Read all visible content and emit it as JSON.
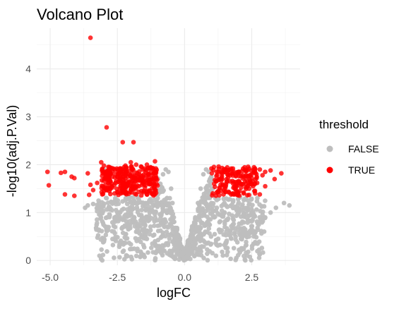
{
  "chart_data": {
    "type": "scatter",
    "title": "Volcano Plot",
    "xlabel": "logFC",
    "ylabel": "-log10(adj.P.Val)",
    "xlim": [
      -5.5,
      4.3
    ],
    "ylim": [
      -0.1,
      4.85
    ],
    "x_ticks": [
      -5.0,
      -2.5,
      0.0,
      2.5
    ],
    "x_tick_labels": [
      "-5.0",
      "-2.5",
      "0.0",
      "2.5"
    ],
    "y_ticks": [
      0,
      1,
      2,
      3,
      4
    ],
    "y_tick_labels": [
      "0",
      "1",
      "2",
      "3",
      "4"
    ],
    "grid": true,
    "legend": {
      "title": "threshold",
      "position": "right",
      "entries": [
        "FALSE",
        "TRUE"
      ]
    },
    "colors": {
      "FALSE": "#bebebe",
      "TRUE": "#ff0000"
    },
    "series": [
      {
        "name": "FALSE",
        "color": "#bebebe",
        "points": [
          [
            -3.0,
            1.9
          ],
          [
            -3.2,
            1.25
          ],
          [
            -2.9,
            1.3
          ],
          [
            -3.4,
            1.18
          ],
          [
            -3.6,
            1.15
          ],
          [
            -3.7,
            1.1
          ],
          [
            -2.7,
            1.05
          ],
          [
            -2.5,
            1.0
          ],
          [
            -2.2,
            0.95
          ],
          [
            -2.0,
            1.0
          ],
          [
            -1.9,
            0.8
          ],
          [
            -1.7,
            0.7
          ],
          [
            -1.5,
            0.6
          ],
          [
            -1.3,
            0.55
          ],
          [
            -1.1,
            0.4
          ],
          [
            -0.95,
            0.3
          ],
          [
            -0.8,
            0.2
          ],
          [
            -0.65,
            0.15
          ],
          [
            -0.5,
            0.1
          ],
          [
            -0.35,
            0.05
          ],
          [
            -0.2,
            0.02
          ],
          [
            -1.2,
            1.2
          ],
          [
            -1.0,
            1.3
          ],
          [
            -0.9,
            1.6
          ],
          [
            -0.8,
            1.8
          ],
          [
            -0.7,
            1.9
          ],
          [
            -0.6,
            1.85
          ],
          [
            -0.5,
            1.5
          ],
          [
            -0.45,
            1.2
          ],
          [
            -0.4,
            0.9
          ],
          [
            -0.3,
            0.6
          ],
          [
            -0.25,
            0.4
          ],
          [
            -0.15,
            0.3
          ],
          [
            -0.1,
            0.15
          ],
          [
            0.0,
            0.05
          ],
          [
            0.1,
            0.1
          ],
          [
            0.2,
            0.25
          ],
          [
            0.3,
            0.5
          ],
          [
            0.4,
            0.9
          ],
          [
            0.5,
            1.2
          ],
          [
            0.6,
            1.5
          ],
          [
            0.7,
            1.8
          ],
          [
            0.8,
            1.9
          ],
          [
            0.9,
            1.85
          ],
          [
            1.0,
            1.2
          ],
          [
            1.2,
            1.1
          ],
          [
            1.4,
            0.95
          ],
          [
            1.6,
            0.85
          ],
          [
            1.8,
            0.75
          ],
          [
            2.0,
            0.7
          ],
          [
            2.2,
            0.6
          ],
          [
            2.4,
            0.5
          ],
          [
            2.6,
            0.55
          ],
          [
            2.5,
            0.65
          ],
          [
            2.8,
            0.8
          ],
          [
            3.0,
            0.9
          ],
          [
            3.2,
            1.0
          ],
          [
            3.4,
            1.1
          ],
          [
            3.7,
            1.2
          ],
          [
            3.9,
            1.15
          ],
          [
            -2.3,
            0.85
          ],
          [
            -2.1,
            0.75
          ],
          [
            -1.8,
            0.6
          ],
          [
            -1.6,
            0.5
          ],
          [
            -1.4,
            0.45
          ],
          [
            -1.2,
            0.35
          ],
          [
            -1.0,
            0.25
          ],
          [
            -0.85,
            0.5
          ],
          [
            -0.75,
            0.7
          ],
          [
            -0.65,
            1.0
          ],
          [
            -0.55,
            1.3
          ],
          [
            0.55,
            0.7
          ],
          [
            0.65,
            1.0
          ],
          [
            0.75,
            1.3
          ],
          [
            0.85,
            1.55
          ],
          [
            1.1,
            0.9
          ],
          [
            1.3,
            0.8
          ],
          [
            1.5,
            0.7
          ],
          [
            1.7,
            0.6
          ],
          [
            1.9,
            0.5
          ],
          [
            2.1,
            0.45
          ],
          [
            -2.6,
            0.9
          ],
          [
            -2.8,
            1.1
          ],
          [
            -3.1,
            1.05
          ],
          [
            -1.05,
            1.7
          ],
          [
            -0.95,
            1.45
          ],
          [
            -1.15,
            1.5
          ],
          [
            1.05,
            1.5
          ],
          [
            1.15,
            1.3
          ],
          [
            0.95,
            1.7
          ]
        ]
      },
      {
        "name": "TRUE",
        "color": "#ff0000",
        "points": [
          [
            -3.5,
            4.65
          ],
          [
            -2.9,
            2.78
          ],
          [
            -2.3,
            2.47
          ],
          [
            -1.9,
            2.47
          ],
          [
            -3.1,
            2.05
          ],
          [
            -5.1,
            1.85
          ],
          [
            -5.05,
            1.57
          ],
          [
            -4.6,
            1.83
          ],
          [
            -4.45,
            1.85
          ],
          [
            -4.2,
            1.75
          ],
          [
            -4.1,
            1.72
          ],
          [
            -4.45,
            1.38
          ],
          [
            -4.1,
            1.35
          ],
          [
            -3.6,
            1.82
          ],
          [
            -3.5,
            1.58
          ],
          [
            -3.4,
            1.47
          ],
          [
            -3.55,
            1.37
          ],
          [
            -3.25,
            1.62
          ],
          [
            -3.0,
            1.98
          ],
          [
            -2.8,
            1.95
          ],
          [
            -2.6,
            1.9
          ],
          [
            -2.4,
            1.92
          ],
          [
            -2.2,
            1.98
          ],
          [
            -2.0,
            2.05
          ],
          [
            -1.8,
            2.0
          ],
          [
            -1.6,
            1.95
          ],
          [
            -1.4,
            2.0
          ],
          [
            -1.2,
            1.92
          ],
          [
            -1.1,
            2.07
          ],
          [
            -2.9,
            1.7
          ],
          [
            -2.7,
            1.6
          ],
          [
            -2.5,
            1.75
          ],
          [
            -2.3,
            1.6
          ],
          [
            -2.1,
            1.8
          ],
          [
            -1.9,
            1.7
          ],
          [
            -1.7,
            1.55
          ],
          [
            -1.5,
            1.72
          ],
          [
            -1.3,
            1.6
          ],
          [
            -1.1,
            1.45
          ],
          [
            -2.8,
            1.45
          ],
          [
            -2.6,
            1.4
          ],
          [
            -2.4,
            1.5
          ],
          [
            -2.2,
            1.42
          ],
          [
            -2.0,
            1.48
          ],
          [
            -1.8,
            1.38
          ],
          [
            -1.6,
            1.45
          ],
          [
            -1.4,
            1.38
          ],
          [
            -1.2,
            1.4
          ],
          [
            -3.0,
            1.45
          ],
          [
            -2.95,
            1.85
          ],
          [
            -2.75,
            1.8
          ],
          [
            -2.55,
            1.65
          ],
          [
            -2.35,
            1.82
          ],
          [
            -2.15,
            1.65
          ],
          [
            -1.95,
            1.9
          ],
          [
            -1.75,
            1.82
          ],
          [
            -1.55,
            1.65
          ],
          [
            -1.35,
            1.8
          ],
          [
            -1.15,
            1.7
          ],
          [
            1.0,
            1.92
          ],
          [
            1.2,
            1.85
          ],
          [
            1.4,
            1.93
          ],
          [
            1.6,
            1.88
          ],
          [
            1.8,
            1.92
          ],
          [
            2.0,
            1.85
          ],
          [
            1.1,
            1.6
          ],
          [
            1.3,
            1.7
          ],
          [
            1.5,
            1.55
          ],
          [
            1.7,
            1.65
          ],
          [
            1.9,
            1.5
          ],
          [
            2.1,
            1.6
          ],
          [
            1.05,
            1.4
          ],
          [
            1.25,
            1.45
          ],
          [
            1.45,
            1.38
          ],
          [
            1.65,
            1.42
          ],
          [
            1.85,
            1.38
          ],
          [
            2.05,
            1.45
          ],
          [
            2.3,
            1.78
          ],
          [
            2.4,
            1.92
          ],
          [
            2.5,
            1.72
          ],
          [
            2.6,
            1.85
          ],
          [
            2.7,
            1.62
          ],
          [
            2.8,
            1.9
          ],
          [
            2.9,
            1.78
          ],
          [
            3.0,
            1.85
          ],
          [
            3.2,
            1.88
          ],
          [
            3.35,
            1.7
          ],
          [
            3.6,
            1.82
          ],
          [
            2.2,
            1.4
          ],
          [
            2.4,
            1.5
          ],
          [
            2.6,
            1.45
          ],
          [
            2.8,
            1.38
          ],
          [
            3.0,
            1.55
          ],
          [
            2.55,
            1.55
          ],
          [
            2.25,
            1.65
          ]
        ]
      }
    ]
  }
}
